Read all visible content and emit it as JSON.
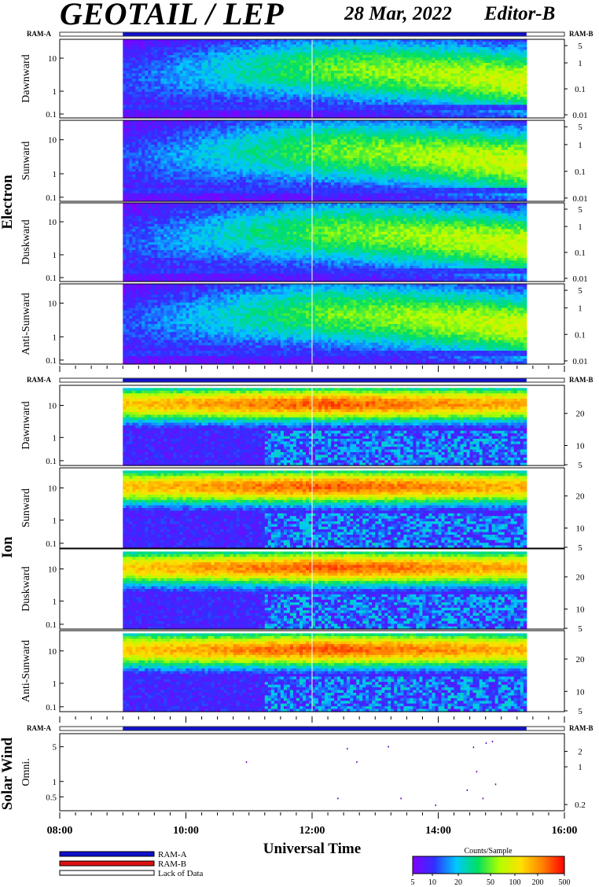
{
  "header": {
    "title": "GEOTAIL / LEP",
    "date": "28 Mar, 2022",
    "editor": "Editor-B"
  },
  "status_bar_labels": {
    "left": "RAM-A",
    "right": "RAM-B"
  },
  "groups": {
    "electron": "Electron",
    "ion": "Ion",
    "solar_wind": "Solar Wind"
  },
  "xaxis": {
    "label": "Universal Time",
    "range_hours": [
      8,
      16
    ],
    "ticks": [
      "08:00",
      "10:00",
      "12:00",
      "14:00",
      "16:00"
    ],
    "data_start_hour": 9.0,
    "data_end_hour": 15.4
  },
  "legend": {
    "items": [
      "RAM-A",
      "RAM-B",
      "Lack of Data"
    ],
    "colors": {
      "ram_a": "#1010cc",
      "ram_b": "#e01010",
      "lack_of_data": "#ffffff"
    }
  },
  "colorbar": {
    "title": "Counts/Sample",
    "ticks": [
      "5",
      "10",
      "20",
      "50",
      "100",
      "200",
      "500"
    ],
    "colors": [
      "#8000ff",
      "#3030ff",
      "#00c8ff",
      "#00e060",
      "#b0ff00",
      "#ffe000",
      "#ff8000",
      "#ff0000"
    ]
  },
  "chart_data": [
    {
      "type": "heatmap",
      "group": "Electron",
      "ylabel": "Dawnward",
      "left_ticks": [
        "10",
        "1",
        "0.1"
      ],
      "right_ticks": [
        "5",
        "1",
        "0.1",
        "0.01"
      ],
      "profile": {
        "start": 0.5,
        "mid": 1.6,
        "end": 2.0
      }
    },
    {
      "type": "heatmap",
      "group": "Electron",
      "ylabel": "Sunward",
      "left_ticks": [
        "10",
        "1",
        "0.1"
      ],
      "right_ticks": [
        "5",
        "1",
        "0.1",
        "0.01"
      ],
      "profile": {
        "start": 0.5,
        "mid": 1.6,
        "end": 2.0
      }
    },
    {
      "type": "heatmap",
      "group": "Electron",
      "ylabel": "Duskward",
      "left_ticks": [
        "10",
        "1",
        "0.1"
      ],
      "right_ticks": [
        "5",
        "1",
        "0.1",
        "0.01"
      ],
      "profile": {
        "start": 0.5,
        "mid": 1.6,
        "end": 2.0
      }
    },
    {
      "type": "heatmap",
      "group": "Electron",
      "ylabel": "Anti-Sunward",
      "left_ticks": [
        "10",
        "1",
        "0.1"
      ],
      "right_ticks": [
        "5",
        "1",
        "0.1",
        "0.01"
      ],
      "profile": {
        "start": 0.5,
        "mid": 1.6,
        "end": 2.0
      }
    },
    {
      "type": "heatmap",
      "group": "Ion",
      "ylabel": "Dawnward",
      "left_ticks": [
        "10",
        "1",
        "0.1"
      ],
      "right_ticks": [
        "20",
        "10",
        "5"
      ],
      "profile": {
        "start": 2.4,
        "mid": 2.9,
        "end": 2.5
      }
    },
    {
      "type": "heatmap",
      "group": "Ion",
      "ylabel": "Sunward",
      "left_ticks": [
        "10",
        "1",
        "0.1"
      ],
      "right_ticks": [
        "20",
        "10",
        "5"
      ],
      "profile": {
        "start": 2.4,
        "mid": 2.9,
        "end": 2.5
      }
    },
    {
      "type": "heatmap",
      "group": "Ion",
      "ylabel": "Duskward",
      "left_ticks": [
        "10",
        "1",
        "0.1"
      ],
      "right_ticks": [
        "20",
        "10",
        "5"
      ],
      "profile": {
        "start": 2.4,
        "mid": 2.9,
        "end": 2.5
      }
    },
    {
      "type": "heatmap",
      "group": "Ion",
      "ylabel": "Anti-Sunward",
      "left_ticks": [
        "10",
        "1",
        "0.1"
      ],
      "right_ticks": [
        "20",
        "10",
        "5"
      ],
      "profile": {
        "start": 2.4,
        "mid": 2.9,
        "end": 2.5
      }
    },
    {
      "type": "scatter",
      "group": "Solar Wind",
      "ylabel": "Omni.",
      "left_ticks": [
        "5",
        "1",
        "0.5"
      ],
      "right_ticks": [
        "2",
        "1",
        "0.2"
      ],
      "points": [
        {
          "x": 12.55,
          "y": 4.2
        },
        {
          "x": 13.2,
          "y": 4.6
        },
        {
          "x": 12.7,
          "y": 2.3
        },
        {
          "x": 10.95,
          "y": 2.3
        },
        {
          "x": 14.55,
          "y": 4.5
        },
        {
          "x": 14.75,
          "y": 5.4
        },
        {
          "x": 14.85,
          "y": 5.8
        },
        {
          "x": 14.6,
          "y": 1.5
        },
        {
          "x": 14.9,
          "y": 0.85
        },
        {
          "x": 14.45,
          "y": 0.65
        },
        {
          "x": 14.7,
          "y": 0.45
        },
        {
          "x": 13.4,
          "y": 0.45
        },
        {
          "x": 12.4,
          "y": 0.45
        },
        {
          "x": 13.95,
          "y": 0.33
        }
      ]
    }
  ]
}
